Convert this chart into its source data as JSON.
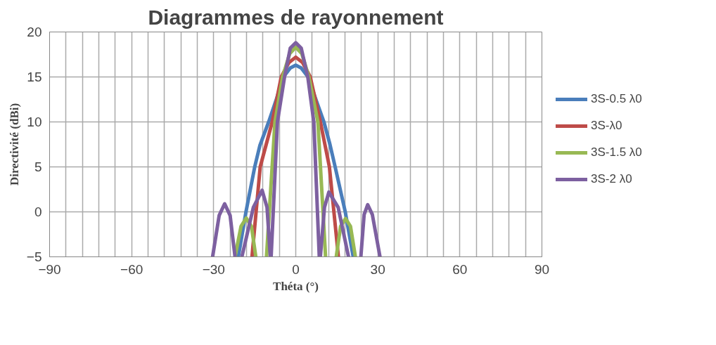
{
  "chart_data": {
    "type": "line",
    "title": "Diagrammes de rayonnement",
    "xlabel": "Théta (°)",
    "ylabel": "Directivité (dBi)",
    "xlim": [
      -90,
      90
    ],
    "ylim": [
      -5,
      20
    ],
    "xticks": [
      -90,
      {
        "value": -84,
        "label": null
      },
      {
        "value": -78,
        "label": null
      },
      {
        "value": -72,
        "label": null
      },
      {
        "value": -66,
        "label": null
      },
      -60,
      {
        "value": -54,
        "label": null
      },
      {
        "value": -48,
        "label": null
      },
      {
        "value": -42,
        "label": null
      },
      {
        "value": -36,
        "label": null
      },
      -30,
      {
        "value": -24,
        "label": null
      },
      {
        "value": -18,
        "label": null
      },
      {
        "value": -12,
        "label": null
      },
      {
        "value": -6,
        "label": null
      },
      0,
      {
        "value": 6,
        "label": null
      },
      {
        "value": 12,
        "label": null
      },
      {
        "value": 18,
        "label": null
      },
      {
        "value": 24,
        "label": null
      },
      30,
      {
        "value": 36,
        "label": null
      },
      {
        "value": 42,
        "label": null
      },
      {
        "value": 48,
        "label": null
      },
      {
        "value": 54,
        "label": null
      },
      60,
      {
        "value": 66,
        "label": null
      },
      {
        "value": 72,
        "label": null
      },
      {
        "value": 78,
        "label": null
      },
      {
        "value": 84,
        "label": null
      },
      90
    ],
    "yticks": [
      -5,
      0,
      5,
      10,
      15,
      20
    ],
    "grid": true,
    "legend": "right",
    "marker": "none",
    "line_style": "solid",
    "series": [
      {
        "name": "3S-0.5 λ0",
        "color": "#4a7ebb",
        "x": [
          -21,
          -18.2,
          -15,
          -13.1,
          -9.9,
          -7,
          -4.5,
          -2,
          0,
          2,
          4.5,
          7,
          10.3,
          12.5,
          14.4,
          18.1,
          21
        ],
        "values": [
          -5,
          0,
          5,
          7.4,
          10,
          12.6,
          15,
          16,
          16.3,
          16,
          15,
          12.8,
          10,
          7.5,
          5,
          0,
          -5
        ]
      },
      {
        "name": "3S-λ0",
        "color": "#be4b48",
        "x": [
          -16,
          -13,
          -8.6,
          -5.3,
          -2.5,
          0,
          2.5,
          5.3,
          9,
          12.3,
          15.6
        ],
        "values": [
          -5,
          5,
          10,
          15,
          16.6,
          17.2,
          16.6,
          15,
          10,
          5,
          -5
        ]
      },
      {
        "name": "3S-1.5 λ0",
        "color": "#98b954",
        "x": [
          -22.2,
          -20,
          -18.1,
          -16.2,
          -14.6,
          null,
          -10.7,
          -7.6,
          -4.8,
          -2.2,
          0,
          2.2,
          4.8,
          8.1,
          10.9,
          null,
          14.8,
          16.4,
          18.2,
          20,
          21.8
        ],
        "values": [
          -5,
          -1.6,
          -0.7,
          -1.6,
          -5,
          null,
          -5,
          10,
          15,
          17.6,
          18.3,
          17.6,
          15,
          10,
          -5,
          null,
          -5,
          -1.6,
          -0.75,
          -1.6,
          -5
        ]
      },
      {
        "name": "3S-2 λ0",
        "color": "#7d60a0",
        "x": [
          -30.4,
          -28,
          -26,
          -24,
          -22.2,
          null,
          -19.7,
          -15.5,
          -12.3,
          -10.5,
          -9.3,
          null,
          -9,
          -6.7,
          -4.1,
          -2,
          0,
          2,
          4.4,
          6.6,
          8.6,
          null,
          9,
          10.5,
          12.1,
          15.5,
          19.3,
          null,
          23.8,
          25,
          26.3,
          28,
          30.8
        ],
        "values": [
          -5,
          -0.4,
          0.9,
          -0.4,
          -5,
          null,
          -5,
          0.5,
          2.4,
          0.5,
          -5,
          null,
          -5,
          10,
          15,
          18.2,
          18.8,
          18.2,
          15,
          10,
          -5,
          null,
          -5,
          0.5,
          2.2,
          0.5,
          -5,
          null,
          -5,
          -0.3,
          0.8,
          -0.3,
          -5
        ]
      }
    ]
  }
}
